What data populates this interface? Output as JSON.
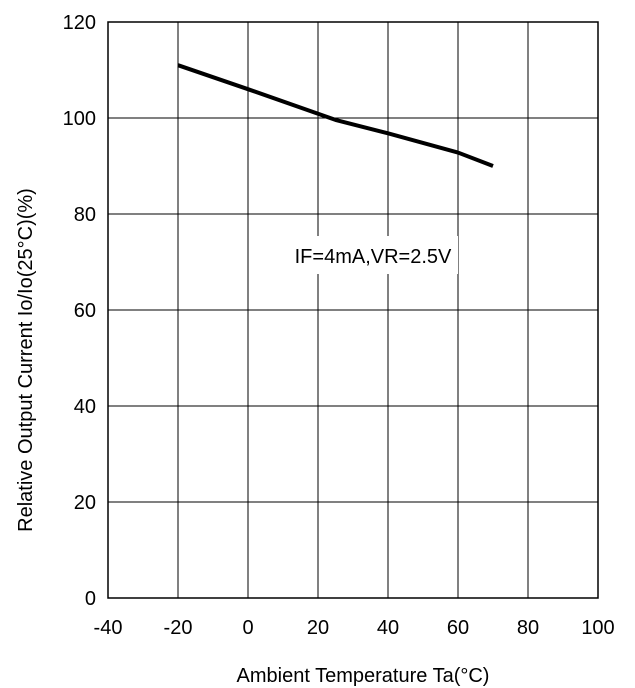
{
  "chart_data": {
    "type": "line",
    "title": "",
    "xlabel": "Ambient  Temperature Ta(°C)",
    "ylabel": "Relative Output Current  Io/Io(25°C)(%)",
    "xlim": [
      -40,
      100
    ],
    "ylim": [
      0,
      120
    ],
    "xticks": [
      "-40",
      "-20",
      "0",
      "20",
      "40",
      "60",
      "80",
      "100"
    ],
    "yticks": [
      "0",
      "20",
      "40",
      "60",
      "80",
      "100",
      "120"
    ],
    "grid": true,
    "annotation": "IF=4mA,VR=2.5V",
    "series": [
      {
        "x": [
          -20,
          0,
          25,
          40,
          60,
          70
        ],
        "y": [
          111,
          106,
          99.6,
          96.8,
          92.8,
          90
        ]
      }
    ]
  }
}
